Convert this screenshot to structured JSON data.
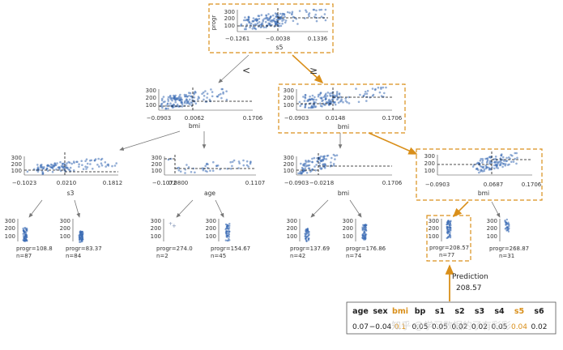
{
  "root": {
    "feature": "s5",
    "ylabel": "progr",
    "yticks": [
      "300",
      "200",
      "100"
    ],
    "xticks": [
      "−0.1261",
      "−0.0038",
      "0.1336"
    ],
    "left_edge": "<",
    "right_edge": "≥"
  },
  "split_left": {
    "feature": "bmi",
    "yticks": [
      "300",
      "200",
      "100"
    ],
    "xticks": [
      "−0.0903",
      "0.0062",
      "0.1706"
    ]
  },
  "split_right": {
    "feature": "bmi",
    "yticks": [
      "300",
      "200",
      "100"
    ],
    "xticks": [
      "−0.0903",
      "0.0148",
      "0.1706"
    ]
  },
  "split_ll": {
    "feature": "s3",
    "yticks": [
      "300",
      "200",
      "100"
    ],
    "xticks": [
      "−0.1023",
      "0.0210",
      "0.1812"
    ]
  },
  "split_lr": {
    "feature": "age",
    "yticks": [
      "300",
      "200",
      "100"
    ],
    "xticks": [
      "−0.1072",
      "0.0800",
      "0.1107"
    ]
  },
  "split_rl": {
    "feature": "bmi",
    "yticks": [
      "300",
      "200",
      "100"
    ],
    "xticks": [
      "−0.0903",
      "−0.0218",
      "0.1706"
    ]
  },
  "split_rr": {
    "feature": "bmi",
    "yticks": [
      "300",
      "200",
      "100"
    ],
    "xticks": [
      "−0.0903",
      "0.0687",
      "0.1706"
    ]
  },
  "leaves": [
    {
      "progr": "progr=108.8",
      "n": "n=87",
      "on_path": false
    },
    {
      "progr": "progr=83.37",
      "n": "n=84",
      "on_path": false
    },
    {
      "progr": "progr=274.0",
      "n": "n=2",
      "on_path": false
    },
    {
      "progr": "progr=154.67",
      "n": "n=45",
      "on_path": false
    },
    {
      "progr": "progr=137.69",
      "n": "n=42",
      "on_path": false
    },
    {
      "progr": "progr=176.86",
      "n": "n=74",
      "on_path": false
    },
    {
      "progr": "progr=208.57",
      "n": "n=77",
      "on_path": true
    },
    {
      "progr": "progr=268.87",
      "n": "n=31",
      "on_path": false
    }
  ],
  "prediction": {
    "label": "Prediction",
    "value": "208.57"
  },
  "instance": {
    "columns": [
      "age",
      "sex",
      "bmi",
      "bp",
      "s1",
      "s2",
      "s3",
      "s4",
      "s5",
      "s6"
    ],
    "highlighted": [
      "bmi",
      "s5"
    ],
    "values": [
      "0.07",
      "−0.04",
      "0.1",
      "0.05",
      "0.05",
      "0.02",
      "0.02",
      "0.05",
      "0.04",
      "0.02"
    ]
  },
  "watermark": "知乎 @学习数据的了有彩彩",
  "colors": {
    "path": "#d98f1a",
    "points": "#3a6bb4",
    "edge": "#777777"
  }
}
